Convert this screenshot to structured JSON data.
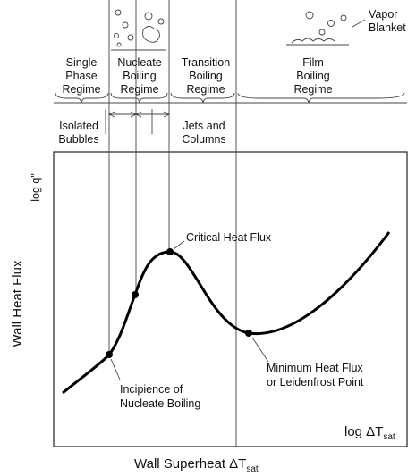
{
  "top": {
    "vapor_blanket": [
      "Vapor",
      "Blanket"
    ]
  },
  "regimes": [
    [
      "Single",
      "Phase",
      "Regime"
    ],
    [
      "Nucleate",
      "Boiling",
      "Regime"
    ],
    [
      "Transition",
      "Boiling",
      "Regime"
    ],
    [
      "Film",
      "Boiling",
      "Regime"
    ]
  ],
  "sub_labels": {
    "isolated": [
      "Isolated",
      "Bubbles"
    ],
    "jets": [
      "Jets and",
      "Columns"
    ]
  },
  "axes": {
    "y_inner": "log q\"",
    "y": "Wall Heat Flux",
    "x_inner": "log ΔT",
    "x_inner_sub": "sat",
    "x": "Wall Superheat ΔT",
    "x_sub": "sat"
  },
  "annotations": {
    "chf": "Critical Heat Flux",
    "min": [
      "Minimum Heat Flux",
      "or Leidenfrost Point"
    ],
    "onb": [
      "Incipience of",
      "Nucleate Boiling"
    ]
  }
}
